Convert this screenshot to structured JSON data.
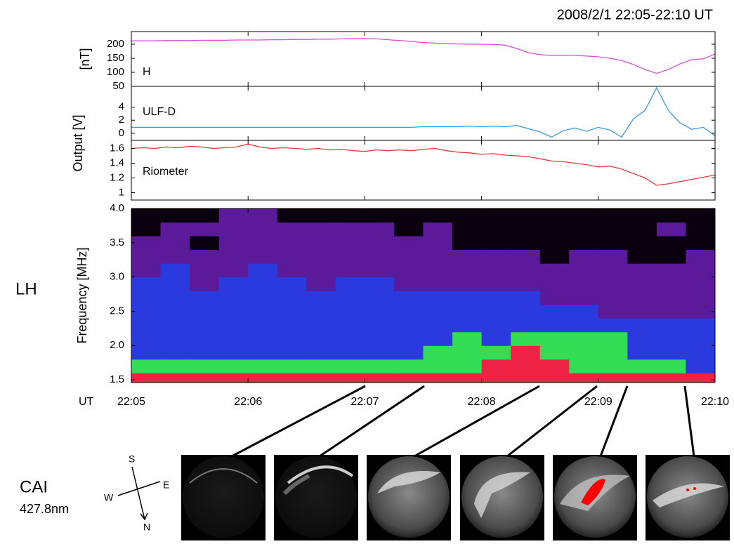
{
  "title": "2008/2/1   22:05-22:10 UT",
  "side_label": "LH",
  "camera": {
    "name": "CAI",
    "wavelength": "427.8nm",
    "compass": {
      "south": "S",
      "east": "E",
      "west": "W",
      "north": "N"
    }
  },
  "chart_data": [
    {
      "type": "line",
      "ylabel": "[nT]",
      "ylim": [
        50,
        245
      ],
      "yticks": [
        50,
        100,
        150,
        200
      ],
      "xlim": [
        0,
        5
      ],
      "x": [
        0,
        0.1,
        0.2,
        0.3,
        0.4,
        0.5,
        0.6,
        0.7,
        0.8,
        0.9,
        1,
        1.1,
        1.2,
        1.3,
        1.4,
        1.5,
        1.6,
        1.7,
        1.8,
        1.9,
        2,
        2.1,
        2.2,
        2.3,
        2.4,
        2.5,
        2.6,
        2.7,
        2.8,
        2.9,
        3,
        3.1,
        3.2,
        3.3,
        3.4,
        3.5,
        3.6,
        3.7,
        3.8,
        3.9,
        4,
        4.1,
        4.2,
        4.3,
        4.4,
        4.5,
        4.6,
        4.7,
        4.8,
        4.9,
        5
      ],
      "series": [
        {
          "name": "H",
          "color": "#d54fd5",
          "values": [
            212,
            212,
            212,
            213,
            213,
            213,
            214,
            214,
            214,
            215,
            215,
            215,
            216,
            216,
            217,
            217,
            218,
            218,
            219,
            220,
            220,
            219,
            216,
            213,
            210,
            206,
            204,
            202,
            201,
            200,
            200,
            199,
            197,
            185,
            170,
            163,
            160,
            160,
            160,
            158,
            155,
            150,
            142,
            128,
            110,
            96,
            110,
            130,
            145,
            148,
            165
          ]
        }
      ]
    },
    {
      "type": "line",
      "ylabel": "Output [V]",
      "ylim": [
        -1.1,
        7.2
      ],
      "yticks": [
        0,
        2,
        4
      ],
      "xlim": [
        0,
        5
      ],
      "x": [
        0,
        0.1,
        0.2,
        0.3,
        0.4,
        0.5,
        0.6,
        0.7,
        0.8,
        0.9,
        1,
        1.1,
        1.2,
        1.3,
        1.4,
        1.5,
        1.6,
        1.7,
        1.8,
        1.9,
        2,
        2.1,
        2.2,
        2.3,
        2.4,
        2.5,
        2.6,
        2.7,
        2.8,
        2.9,
        3,
        3.1,
        3.2,
        3.3,
        3.4,
        3.5,
        3.6,
        3.7,
        3.8,
        3.9,
        4,
        4.1,
        4.2,
        4.3,
        4.4,
        4.5,
        4.6,
        4.7,
        4.8,
        4.9,
        5
      ],
      "series": [
        {
          "name": "ULF-D",
          "color": "#3a9ad9",
          "values": [
            0.9,
            0.9,
            0.9,
            0.9,
            0.9,
            0.9,
            0.9,
            0.9,
            0.9,
            0.9,
            0.9,
            0.9,
            0.9,
            0.9,
            0.9,
            0.9,
            0.9,
            0.9,
            0.9,
            0.9,
            0.9,
            0.9,
            0.9,
            0.9,
            0.9,
            1.0,
            1.0,
            1.0,
            1.0,
            1.1,
            1.0,
            1.1,
            1.0,
            1.2,
            0.7,
            0.2,
            -0.6,
            0.4,
            0.8,
            0.3,
            0.9,
            0.5,
            -0.6,
            2.2,
            3.5,
            7.0,
            3.5,
            1.6,
            0.6,
            0.9,
            -0.4
          ]
        }
      ]
    },
    {
      "type": "line",
      "ylim": [
        0.9,
        1.71
      ],
      "yticks": [
        1,
        1.2,
        1.4,
        1.6
      ],
      "xlim": [
        0,
        5
      ],
      "x": [
        0,
        0.1,
        0.2,
        0.3,
        0.4,
        0.5,
        0.6,
        0.7,
        0.8,
        0.9,
        1,
        1.1,
        1.2,
        1.3,
        1.4,
        1.5,
        1.6,
        1.7,
        1.8,
        1.9,
        2,
        2.1,
        2.2,
        2.3,
        2.4,
        2.5,
        2.6,
        2.7,
        2.8,
        2.9,
        3,
        3.1,
        3.2,
        3.3,
        3.4,
        3.5,
        3.6,
        3.7,
        3.8,
        3.9,
        4,
        4.1,
        4.2,
        4.3,
        4.4,
        4.5,
        4.6,
        4.7,
        4.8,
        4.9,
        5
      ],
      "series": [
        {
          "name": "Riometer",
          "color": "#e03a3a",
          "values": [
            1.6,
            1.61,
            1.6,
            1.62,
            1.61,
            1.63,
            1.62,
            1.6,
            1.61,
            1.62,
            1.66,
            1.62,
            1.6,
            1.61,
            1.6,
            1.59,
            1.6,
            1.58,
            1.59,
            1.57,
            1.56,
            1.58,
            1.57,
            1.58,
            1.57,
            1.59,
            1.6,
            1.57,
            1.55,
            1.54,
            1.52,
            1.53,
            1.51,
            1.5,
            1.49,
            1.46,
            1.43,
            1.42,
            1.4,
            1.38,
            1.35,
            1.36,
            1.32,
            1.26,
            1.2,
            1.1,
            1.12,
            1.15,
            1.18,
            1.21,
            1.24
          ]
        }
      ]
    },
    {
      "type": "heatmap",
      "ylabel": "Frequency [MHz]",
      "xlabel": "UT",
      "xlim": [
        0,
        5
      ],
      "ylim": [
        1.46,
        4.0
      ],
      "xticks": [
        {
          "value": 0,
          "label": "22:05"
        },
        {
          "value": 1,
          "label": "22:06"
        },
        {
          "value": 2,
          "label": "22:07"
        },
        {
          "value": 3,
          "label": "22:08"
        },
        {
          "value": 4,
          "label": "22:09"
        },
        {
          "value": 5,
          "label": "22:10"
        }
      ],
      "yticks": [
        1.5,
        {
          "value": 2,
          "label": "2.0"
        },
        2.5,
        {
          "value": 3,
          "label": "3.0"
        },
        3.5,
        {
          "value": 4,
          "label": "4.0"
        }
      ],
      "colorscale": [
        "#0a0010",
        "#5a1a9a",
        "#2a3adf",
        "#33dd55",
        "#ee2244"
      ],
      "xbins": [
        0,
        0.25,
        0.5,
        0.75,
        1,
        1.25,
        1.5,
        1.75,
        2,
        2.25,
        2.5,
        2.75,
        3,
        3.25,
        3.5,
        3.75,
        4,
        4.25,
        4.5,
        4.75,
        5
      ],
      "ybins": [
        1.46,
        1.6,
        1.8,
        2.0,
        2.2,
        2.4,
        2.6,
        2.8,
        3.0,
        3.2,
        3.4,
        3.6,
        3.8,
        4.0
      ],
      "z": [
        [
          4,
          4,
          4,
          4,
          4,
          4,
          4,
          4,
          4,
          4,
          4,
          4,
          4,
          4,
          4,
          4,
          4,
          4,
          4,
          4
        ],
        [
          3,
          3,
          3,
          3,
          3,
          3,
          3,
          3,
          3,
          3,
          3,
          3,
          4,
          4,
          4,
          3,
          3,
          3,
          3,
          2
        ],
        [
          2,
          2,
          2,
          2,
          2,
          2,
          2,
          2,
          2,
          2,
          3,
          3,
          3,
          4,
          3,
          3,
          3,
          2,
          2,
          2
        ],
        [
          2,
          2,
          2,
          2,
          2,
          2,
          2,
          2,
          2,
          2,
          2,
          3,
          2,
          3,
          3,
          3,
          3,
          2,
          2,
          2
        ],
        [
          2,
          2,
          2,
          2,
          2,
          2,
          2,
          2,
          2,
          2,
          2,
          2,
          2,
          2,
          2,
          2,
          2,
          2,
          2,
          2
        ],
        [
          2,
          2,
          2,
          2,
          2,
          2,
          2,
          2,
          2,
          2,
          2,
          2,
          2,
          2,
          2,
          2,
          1,
          1,
          1,
          1
        ],
        [
          2,
          2,
          2,
          2,
          2,
          2,
          2,
          2,
          2,
          2,
          2,
          2,
          2,
          2,
          1,
          1,
          1,
          1,
          1,
          1
        ],
        [
          2,
          2,
          1,
          2,
          2,
          2,
          1,
          2,
          2,
          1,
          1,
          1,
          1,
          1,
          1,
          1,
          1,
          1,
          1,
          1
        ],
        [
          1,
          2,
          1,
          1,
          2,
          1,
          1,
          1,
          1,
          1,
          1,
          1,
          1,
          1,
          1,
          1,
          1,
          1,
          1,
          1
        ],
        [
          1,
          1,
          1,
          1,
          1,
          1,
          1,
          1,
          1,
          1,
          1,
          1,
          1,
          1,
          0,
          1,
          1,
          0,
          0,
          1
        ],
        [
          1,
          1,
          0,
          1,
          1,
          1,
          1,
          1,
          1,
          1,
          1,
          0,
          0,
          0,
          0,
          0,
          0,
          0,
          0,
          0
        ],
        [
          0,
          1,
          1,
          1,
          1,
          1,
          1,
          1,
          1,
          0,
          1,
          0,
          0,
          0,
          0,
          0,
          0,
          0,
          1,
          0
        ],
        [
          0,
          0,
          0,
          1,
          1,
          0,
          0,
          0,
          0,
          0,
          0,
          0,
          0,
          0,
          0,
          0,
          0,
          0,
          0,
          0
        ]
      ]
    }
  ]
}
